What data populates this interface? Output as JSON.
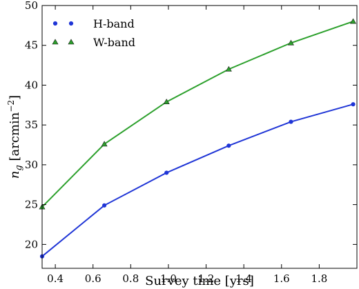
{
  "chart_data": {
    "type": "line",
    "title": "",
    "xlabel": "Survey time [yrs]",
    "ylabel": "n_g [arcmin^-2]",
    "ylabel_main": "n",
    "ylabel_sub": "g",
    "ylabel_unit_open": " [arcmin",
    "ylabel_sup": "−2",
    "ylabel_unit_close": "]",
    "xlim": [
      0.33,
      2.0
    ],
    "ylim": [
      17,
      50
    ],
    "xticks": [
      0.4,
      0.6,
      0.8,
      1.0,
      1.2,
      1.4,
      1.6,
      1.8
    ],
    "xtick_labels": [
      "0.4",
      "0.6",
      "0.8",
      "1.0",
      "1.2",
      "1.4",
      "1.6",
      "1.8"
    ],
    "yticks": [
      20,
      25,
      30,
      35,
      40,
      45,
      50
    ],
    "ytick_labels": [
      "20",
      "25",
      "30",
      "35",
      "40",
      "45",
      "50"
    ],
    "grid": false,
    "legend_position": "top-left",
    "series": [
      {
        "name": "H-band",
        "color": "#1f35d6",
        "marker": "circle",
        "x": [
          0.33,
          0.66,
          0.99,
          1.32,
          1.65,
          1.98
        ],
        "y": [
          18.5,
          24.9,
          29.0,
          32.4,
          35.4,
          37.6
        ]
      },
      {
        "name": "W-band",
        "color": "#2ca02c",
        "marker": "triangle",
        "x": [
          0.33,
          0.66,
          0.99,
          1.32,
          1.65,
          1.98
        ],
        "y": [
          24.7,
          32.6,
          37.9,
          42.0,
          45.3,
          48.0
        ]
      }
    ]
  }
}
